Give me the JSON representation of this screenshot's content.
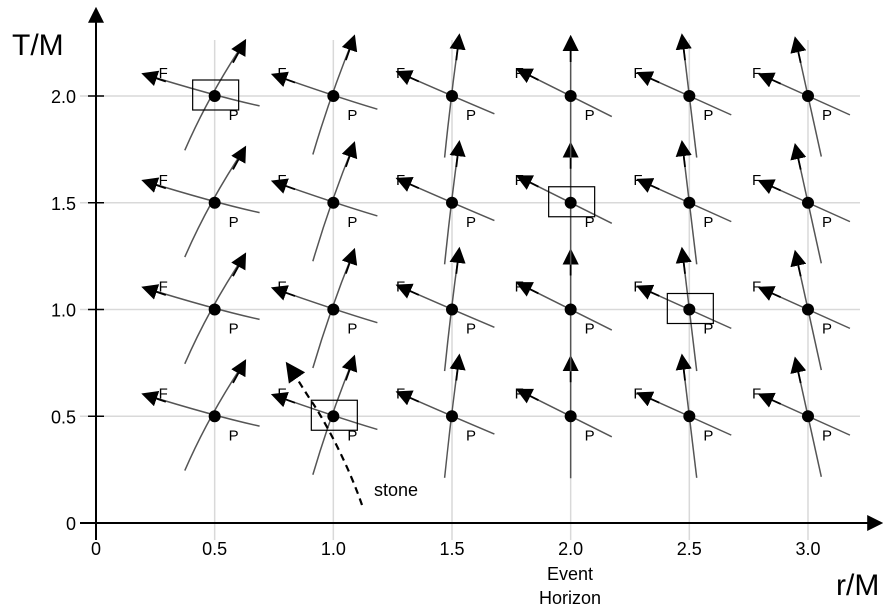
{
  "diagram": {
    "x_axis_label": "r/M",
    "y_axis_label": "T/M",
    "x_ticks": [
      "0",
      "0.5",
      "1.0",
      "1.5",
      "2.0",
      "2.5",
      "3.0"
    ],
    "y_ticks": [
      "0",
      "0.5",
      "1.0",
      "1.5",
      "2.0"
    ],
    "event_horizon_label_line1": "Event",
    "event_horizon_label_line2": "Horizon",
    "future_label": "F",
    "past_label": "P",
    "stone_label": "stone",
    "r_values": [
      0.5,
      1.0,
      1.5,
      2.0,
      2.5,
      3.0
    ],
    "T_values": [
      0.5,
      1.0,
      1.5,
      2.0
    ],
    "highlighted_events": [
      {
        "r": 0.5,
        "T": 2.0
      },
      {
        "r": 2.0,
        "T": 1.5
      },
      {
        "r": 2.5,
        "T": 1.0
      },
      {
        "r": 1.0,
        "T": 0.5
      }
    ],
    "colors": {
      "ink": "#000000",
      "curve": "#555555",
      "grid": "#d9d9d9"
    }
  }
}
